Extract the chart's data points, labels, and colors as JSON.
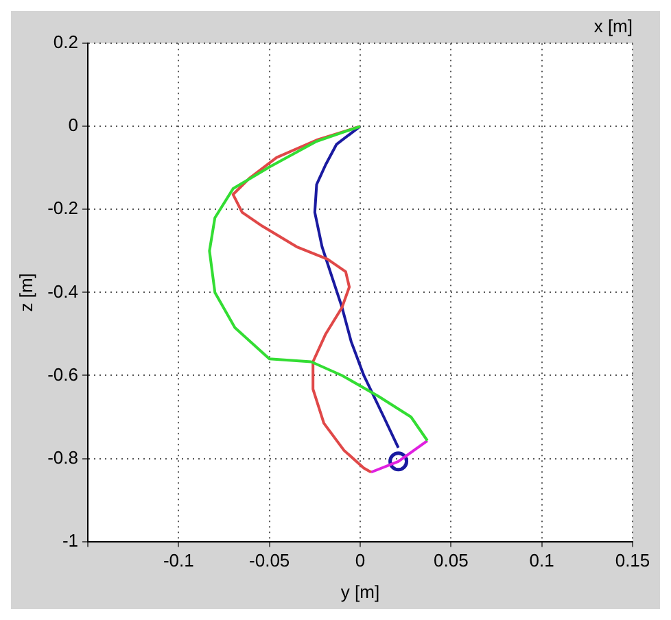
{
  "chart_data": {
    "type": "line",
    "title": "x [m]",
    "xlabel": "y [m]",
    "ylabel": "z [m]",
    "xlim": [
      -0.15,
      0.15
    ],
    "xticks": [
      {
        "value": -0.15,
        "label": null
      },
      -0.1,
      -0.05,
      0,
      0.05,
      0.1,
      0.15
    ],
    "ylim": [
      -1,
      0.2
    ],
    "yticks": [
      -1,
      -0.8,
      -0.6,
      -0.4,
      -0.2,
      0,
      0.2
    ],
    "grid": true,
    "legend": false,
    "marker": "none",
    "line_style": "solid",
    "series": [
      {
        "type": "line",
        "color": "#33dd33",
        "x": [
          0,
          -0.024,
          -0.05,
          -0.07,
          -0.08,
          -0.083,
          -0.08,
          -0.069,
          -0.05,
          -0.027,
          -0.01,
          0.01,
          0.028,
          0.037
        ],
        "values": [
          0,
          -0.036,
          -0.098,
          -0.15,
          -0.22,
          -0.3,
          -0.4,
          -0.485,
          -0.56,
          -0.567,
          -0.6,
          -0.65,
          -0.7,
          -0.757
        ]
      },
      {
        "type": "line",
        "color": "#e04848",
        "x": [
          0,
          -0.024,
          -0.046,
          -0.061,
          -0.07,
          -0.065,
          -0.054,
          -0.035,
          -0.018,
          -0.008,
          -0.006,
          -0.01,
          -0.019,
          -0.026,
          -0.026,
          -0.02,
          -0.009,
          0.002,
          0.006
        ],
        "values": [
          0,
          -0.033,
          -0.075,
          -0.125,
          -0.164,
          -0.207,
          -0.24,
          -0.29,
          -0.32,
          -0.35,
          -0.387,
          -0.436,
          -0.5,
          -0.567,
          -0.633,
          -0.715,
          -0.78,
          -0.823,
          -0.833
        ]
      },
      {
        "type": "line",
        "color": "#1a1aa0",
        "x": [
          0,
          -0.013,
          -0.019,
          -0.024,
          -0.025,
          -0.021,
          -0.015,
          -0.01,
          -0.005,
          0.002,
          0.013,
          0.021
        ],
        "values": [
          0,
          -0.043,
          -0.092,
          -0.14,
          -0.207,
          -0.29,
          -0.37,
          -0.436,
          -0.518,
          -0.6,
          -0.7,
          -0.774
        ]
      },
      {
        "type": "line",
        "color": "#e020e0",
        "x": [
          0.006,
          0.021,
          0.037
        ],
        "values": [
          -0.833,
          -0.807,
          -0.757
        ]
      },
      {
        "type": "scatter",
        "marker": "circle",
        "color": "#1a1aa0",
        "x": [
          0.021
        ],
        "values": [
          -0.807
        ]
      }
    ]
  }
}
